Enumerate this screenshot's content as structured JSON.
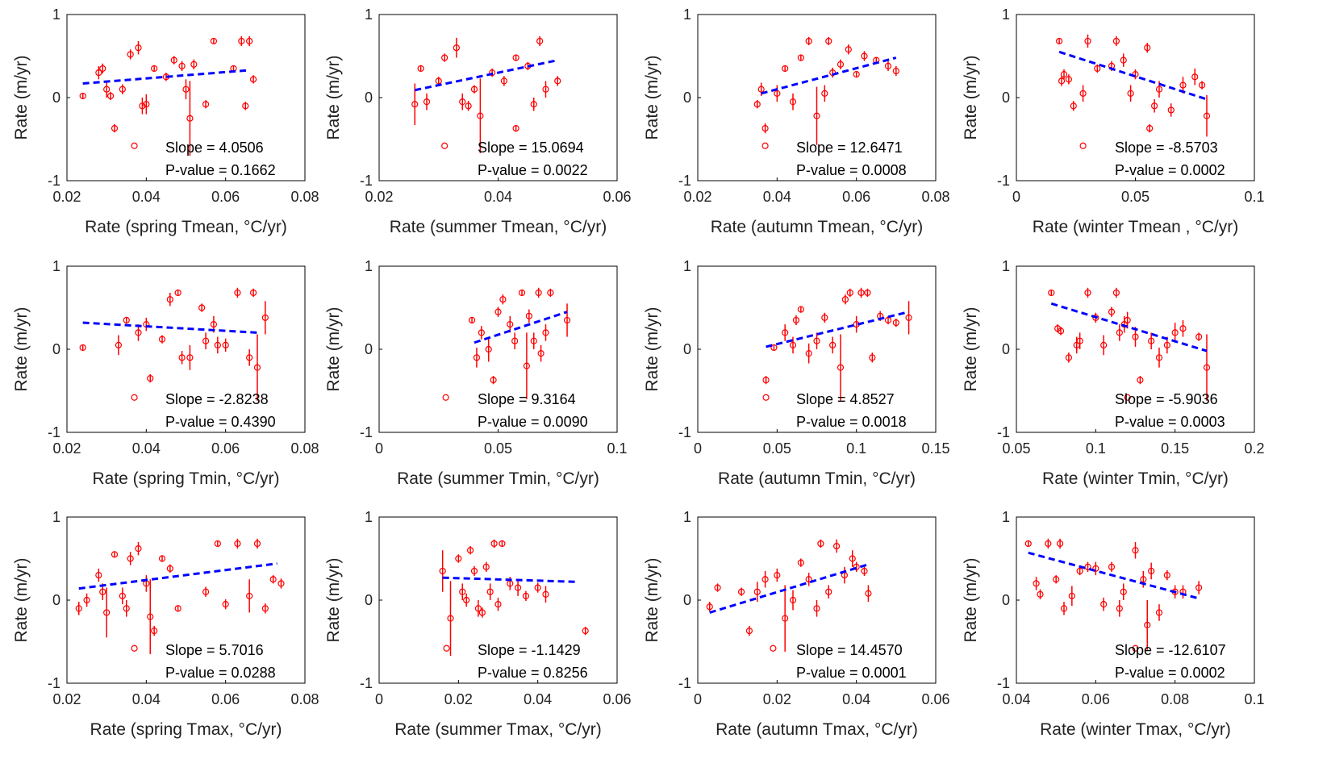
{
  "chart_data": [
    {
      "type": "scatter",
      "xlabel": "Rate (spring  Tmean, °C/yr)",
      "ylabel": "Rate (m/yr)",
      "xlim": [
        0.02,
        0.08
      ],
      "xticks": [
        0.02,
        0.04,
        0.06,
        0.08
      ],
      "ylim": [
        -1,
        1
      ],
      "yticks": [
        -1,
        0,
        1
      ],
      "color": "#ff0000",
      "x": [
        0.024,
        0.028,
        0.029,
        0.03,
        0.031,
        0.032,
        0.034,
        0.036,
        0.037,
        0.038,
        0.039,
        0.04,
        0.042,
        0.045,
        0.047,
        0.049,
        0.05,
        0.051,
        0.052,
        0.055,
        0.057,
        0.062,
        0.064,
        0.065,
        0.066,
        0.067
      ],
      "values": [
        0.02,
        0.3,
        0.35,
        0.1,
        0.02,
        -0.37,
        0.1,
        0.52,
        -0.58,
        0.6,
        -0.1,
        -0.08,
        0.35,
        0.25,
        0.45,
        0.38,
        0.1,
        -0.25,
        0.4,
        -0.08,
        0.68,
        0.35,
        0.68,
        -0.1,
        0.68,
        0.22
      ],
      "errors": [
        0.03,
        0.08,
        0.06,
        0.1,
        0.05,
        0.05,
        0.06,
        0.06,
        0,
        0.08,
        0.1,
        0.12,
        0.04,
        0.05,
        0.05,
        0.06,
        0.12,
        0.45,
        0.06,
        0.05,
        0.03,
        0.04,
        0.06,
        0.05,
        0.06,
        0.05
      ],
      "fit": {
        "x": [
          0.024,
          0.066
        ],
        "values": [
          0.17,
          0.33
        ],
        "color": "#0000ff"
      },
      "slope_text": "Slope = 4.0506",
      "p_text": "P-value = 0.1662"
    },
    {
      "type": "scatter",
      "xlabel": "Rate (summer Tmean, °C/yr)",
      "ylabel": "Rate (m/yr)",
      "xlim": [
        0.02,
        0.06
      ],
      "xticks": [
        0.02,
        0.04,
        0.06
      ],
      "ylim": [
        -1,
        1
      ],
      "yticks": [
        -1,
        0,
        1
      ],
      "color": "#ff0000",
      "x": [
        0.026,
        0.027,
        0.028,
        0.03,
        0.031,
        0.031,
        0.033,
        0.034,
        0.035,
        0.036,
        0.037,
        0.039,
        0.041,
        0.043,
        0.043,
        0.045,
        0.046,
        0.047,
        0.048,
        0.05
      ],
      "values": [
        -0.08,
        0.35,
        -0.05,
        0.2,
        0.48,
        -0.58,
        0.6,
        -0.05,
        -0.1,
        0.1,
        -0.22,
        0.3,
        0.2,
        0.48,
        -0.37,
        0.38,
        -0.08,
        0.68,
        0.1,
        0.2
      ],
      "errors": [
        0.25,
        0.04,
        0.1,
        0.05,
        0.05,
        0,
        0.12,
        0.1,
        0.06,
        0.05,
        0.45,
        0.05,
        0.06,
        0.04,
        0.04,
        0.05,
        0.08,
        0.06,
        0.1,
        0.06
      ],
      "fit": {
        "x": [
          0.026,
          0.05
        ],
        "values": [
          0.09,
          0.45
        ],
        "color": "#0000ff"
      },
      "slope_text": "Slope = 15.0694",
      "p_text": "P-value = 0.0022"
    },
    {
      "type": "scatter",
      "xlabel": "Rate (autumn Tmean, °C/yr)",
      "ylabel": "Rate (m/yr)",
      "xlim": [
        0.02,
        0.08
      ],
      "xticks": [
        0.02,
        0.04,
        0.06,
        0.08
      ],
      "ylim": [
        -1,
        1
      ],
      "yticks": [
        -1,
        0,
        1
      ],
      "color": "#ff0000",
      "x": [
        0.035,
        0.036,
        0.037,
        0.037,
        0.04,
        0.042,
        0.044,
        0.046,
        0.048,
        0.05,
        0.052,
        0.053,
        0.054,
        0.056,
        0.058,
        0.06,
        0.062,
        0.065,
        0.068,
        0.07
      ],
      "values": [
        -0.08,
        0.1,
        -0.37,
        -0.58,
        0.05,
        0.35,
        -0.05,
        0.48,
        0.68,
        -0.22,
        0.05,
        0.68,
        0.3,
        0.4,
        0.58,
        0.28,
        0.5,
        0.45,
        0.38,
        0.32
      ],
      "errors": [
        0.05,
        0.08,
        0.06,
        0,
        0.1,
        0.04,
        0.1,
        0.04,
        0.05,
        0.35,
        0.1,
        0.05,
        0.06,
        0.06,
        0.06,
        0.04,
        0.06,
        0.04,
        0.06,
        0.06
      ],
      "fit": {
        "x": [
          0.036,
          0.07
        ],
        "values": [
          0.05,
          0.48
        ],
        "color": "#0000ff"
      },
      "slope_text": "Slope = 12.6471",
      "p_text": "P-value = 0.0008"
    },
    {
      "type": "scatter",
      "xlabel": "Rate (winter Tmean , °C/yr)",
      "ylabel": "Rate (m/yr)",
      "xlim": [
        0,
        0.1
      ],
      "xticks": [
        0,
        0.05,
        0.1
      ],
      "ylim": [
        -1,
        1
      ],
      "yticks": [
        -1,
        0,
        1
      ],
      "color": "#ff0000",
      "x": [
        0.018,
        0.019,
        0.02,
        0.022,
        0.024,
        0.028,
        0.028,
        0.03,
        0.034,
        0.04,
        0.042,
        0.045,
        0.048,
        0.05,
        0.055,
        0.056,
        0.058,
        0.06,
        0.065,
        0.07,
        0.075,
        0.078,
        0.08
      ],
      "values": [
        0.68,
        0.2,
        0.28,
        0.22,
        -0.1,
        0.05,
        -0.58,
        0.68,
        0.35,
        0.38,
        0.68,
        0.45,
        0.05,
        0.28,
        0.6,
        -0.37,
        -0.1,
        0.1,
        -0.15,
        0.15,
        0.25,
        0.15,
        -0.22
      ],
      "errors": [
        0.03,
        0.06,
        0.06,
        0.06,
        0.06,
        0.1,
        0,
        0.08,
        0.05,
        0.06,
        0.06,
        0.08,
        0.1,
        0.06,
        0.06,
        0.05,
        0.08,
        0.1,
        0.08,
        0.1,
        0.1,
        0.05,
        0.25
      ],
      "fit": {
        "x": [
          0.018,
          0.08
        ],
        "values": [
          0.55,
          -0.02
        ],
        "color": "#0000ff"
      },
      "slope_text": "Slope = -8.5703",
      "p_text": "P-value = 0.0002"
    },
    {
      "type": "scatter",
      "xlabel": "Rate (spring Tmin, °C/yr)",
      "ylabel": "Rate (m/yr)",
      "xlim": [
        0.02,
        0.08
      ],
      "xticks": [
        0.02,
        0.04,
        0.06,
        0.08
      ],
      "ylim": [
        -1,
        1
      ],
      "yticks": [
        -1,
        0,
        1
      ],
      "color": "#ff0000",
      "x": [
        0.024,
        0.033,
        0.035,
        0.037,
        0.038,
        0.04,
        0.041,
        0.044,
        0.046,
        0.048,
        0.049,
        0.051,
        0.054,
        0.055,
        0.057,
        0.058,
        0.06,
        0.063,
        0.066,
        0.067,
        0.068,
        0.07
      ],
      "values": [
        0.02,
        0.05,
        0.35,
        -0.58,
        0.2,
        0.3,
        -0.35,
        0.12,
        0.6,
        0.68,
        -0.1,
        -0.1,
        0.5,
        0.1,
        0.3,
        0.05,
        0.05,
        0.68,
        -0.1,
        0.68,
        -0.22,
        0.38
      ],
      "errors": [
        0.03,
        0.12,
        0.04,
        0,
        0.1,
        0.08,
        0.05,
        0.05,
        0.08,
        0.04,
        0.08,
        0.15,
        0.05,
        0.1,
        0.1,
        0.1,
        0.08,
        0.06,
        0.1,
        0.05,
        0.4,
        0.2
      ],
      "fit": {
        "x": [
          0.024,
          0.068
        ],
        "values": [
          0.32,
          0.2
        ],
        "color": "#0000ff"
      },
      "slope_text": "Slope = -2.8238",
      "p_text": "P-value = 0.4390"
    },
    {
      "type": "scatter",
      "xlabel": "Rate (summer Tmin, °C/yr)",
      "ylabel": "Rate (m/yr)",
      "xlim": [
        0,
        0.1
      ],
      "xticks": [
        0,
        0.05,
        0.1
      ],
      "ylim": [
        -1,
        1
      ],
      "yticks": [
        -1,
        0,
        1
      ],
      "color": "#ff0000",
      "x": [
        0.028,
        0.039,
        0.041,
        0.043,
        0.046,
        0.048,
        0.05,
        0.052,
        0.055,
        0.057,
        0.06,
        0.062,
        0.063,
        0.065,
        0.067,
        0.068,
        0.07,
        0.072,
        0.079
      ],
      "values": [
        -0.58,
        0.35,
        -0.1,
        0.2,
        0.0,
        -0.37,
        0.45,
        0.6,
        0.3,
        0.1,
        0.68,
        -0.2,
        0.4,
        0.1,
        0.68,
        -0.05,
        0.2,
        0.68,
        0.35
      ],
      "errors": [
        0,
        0.04,
        0.12,
        0.08,
        0.15,
        0.05,
        0.06,
        0.06,
        0.1,
        0.1,
        0.04,
        0.4,
        0.08,
        0.1,
        0.06,
        0.1,
        0.1,
        0.05,
        0.2
      ],
      "fit": {
        "x": [
          0.04,
          0.079
        ],
        "values": [
          0.08,
          0.45
        ],
        "color": "#0000ff"
      },
      "slope_text": "Slope = 9.3164",
      "p_text": "P-value = 0.0090"
    },
    {
      "type": "scatter",
      "xlabel": "Rate (autumn Tmin, °C/yr)",
      "ylabel": "Rate (m/yr)",
      "xlim": [
        0,
        0.15
      ],
      "xticks": [
        0,
        0.05,
        0.1,
        0.15
      ],
      "ylim": [
        -1,
        1
      ],
      "yticks": [
        -1,
        0,
        1
      ],
      "color": "#ff0000",
      "x": [
        0.043,
        0.043,
        0.048,
        0.055,
        0.06,
        0.062,
        0.065,
        0.07,
        0.075,
        0.08,
        0.085,
        0.09,
        0.093,
        0.096,
        0.1,
        0.103,
        0.107,
        0.11,
        0.115,
        0.12,
        0.125,
        0.133
      ],
      "values": [
        -0.37,
        -0.58,
        0.02,
        0.2,
        0.05,
        0.35,
        0.48,
        -0.05,
        0.1,
        0.38,
        0.05,
        -0.22,
        0.6,
        0.68,
        0.3,
        0.68,
        0.68,
        -0.1,
        0.4,
        0.35,
        0.32,
        0.38
      ],
      "errors": [
        0.05,
        0,
        0.03,
        0.1,
        0.1,
        0.06,
        0.04,
        0.12,
        0.1,
        0.06,
        0.1,
        0.4,
        0.06,
        0.05,
        0.1,
        0.06,
        0.05,
        0.06,
        0.06,
        0.05,
        0.05,
        0.2
      ],
      "fit": {
        "x": [
          0.043,
          0.133
        ],
        "values": [
          0.03,
          0.45
        ],
        "color": "#0000ff"
      },
      "slope_text": "Slope = 4.8527",
      "p_text": "P-value = 0.0018"
    },
    {
      "type": "scatter",
      "xlabel": "Rate (winter Tmin, °C/yr)",
      "ylabel": "Rate (m/yr)",
      "xlim": [
        0.05,
        0.2
      ],
      "xticks": [
        0.05,
        0.1,
        0.15,
        0.2
      ],
      "ylim": [
        -1,
        1
      ],
      "yticks": [
        -1,
        0,
        1
      ],
      "color": "#ff0000",
      "x": [
        0.072,
        0.076,
        0.078,
        0.083,
        0.088,
        0.09,
        0.095,
        0.1,
        0.105,
        0.11,
        0.113,
        0.115,
        0.118,
        0.12,
        0.12,
        0.125,
        0.128,
        0.135,
        0.14,
        0.145,
        0.15,
        0.155,
        0.165,
        0.17
      ],
      "values": [
        0.68,
        0.25,
        0.22,
        -0.1,
        0.05,
        0.1,
        0.68,
        0.38,
        0.05,
        0.45,
        0.68,
        0.2,
        0.3,
        0.35,
        -0.58,
        0.15,
        -0.37,
        0.1,
        -0.1,
        0.05,
        0.2,
        0.25,
        0.15,
        -0.22
      ],
      "errors": [
        0.03,
        0.05,
        0.05,
        0.06,
        0.1,
        0.1,
        0.06,
        0.06,
        0.12,
        0.06,
        0.06,
        0.1,
        0.1,
        0.1,
        0,
        0.12,
        0.05,
        0.1,
        0.12,
        0.1,
        0.12,
        0.1,
        0.05,
        0.4
      ],
      "fit": {
        "x": [
          0.072,
          0.17
        ],
        "values": [
          0.55,
          -0.02
        ],
        "color": "#0000ff"
      },
      "slope_text": "Slope = -5.9036",
      "p_text": "P-value = 0.0003"
    },
    {
      "type": "scatter",
      "xlabel": "Rate (spring Tmax, °C/yr)",
      "ylabel": "Rate (m/yr)",
      "xlim": [
        0.02,
        0.08
      ],
      "xticks": [
        0.02,
        0.04,
        0.06,
        0.08
      ],
      "ylim": [
        -1,
        1
      ],
      "yticks": [
        -1,
        0,
        1
      ],
      "color": "#ff0000",
      "x": [
        0.023,
        0.025,
        0.028,
        0.029,
        0.03,
        0.032,
        0.034,
        0.035,
        0.036,
        0.037,
        0.038,
        0.04,
        0.041,
        0.042,
        0.044,
        0.046,
        0.048,
        0.055,
        0.058,
        0.06,
        0.063,
        0.066,
        0.068,
        0.07,
        0.072,
        0.074
      ],
      "values": [
        -0.1,
        0.0,
        0.3,
        0.1,
        -0.15,
        0.55,
        0.05,
        -0.1,
        0.5,
        -0.58,
        0.62,
        0.2,
        -0.2,
        -0.37,
        0.5,
        0.38,
        -0.1,
        0.1,
        0.68,
        -0.05,
        0.68,
        0.05,
        0.68,
        -0.1,
        0.25,
        0.2
      ],
      "errors": [
        0.08,
        0.08,
        0.08,
        0.1,
        0.3,
        0.03,
        0.1,
        0.1,
        0.08,
        0,
        0.08,
        0.1,
        0.45,
        0.06,
        0.04,
        0.05,
        0.04,
        0.06,
        0.03,
        0.06,
        0.06,
        0.2,
        0.06,
        0.06,
        0.05,
        0.06
      ],
      "fit": {
        "x": [
          0.023,
          0.073
        ],
        "values": [
          0.14,
          0.44
        ],
        "color": "#0000ff"
      },
      "slope_text": "Slope = 5.7016",
      "p_text": "P-value = 0.0288"
    },
    {
      "type": "scatter",
      "xlabel": "Rate (summer Tmax, °C/yr)",
      "ylabel": "Rate (m/yr)",
      "xlim": [
        0,
        0.06
      ],
      "xticks": [
        0,
        0.02,
        0.04,
        0.06
      ],
      "ylim": [
        -1,
        1
      ],
      "yticks": [
        -1,
        0,
        1
      ],
      "color": "#ff0000",
      "x": [
        0.016,
        0.017,
        0.018,
        0.02,
        0.021,
        0.022,
        0.023,
        0.024,
        0.025,
        0.026,
        0.027,
        0.028,
        0.029,
        0.03,
        0.031,
        0.033,
        0.035,
        0.037,
        0.04,
        0.042,
        0.052
      ],
      "values": [
        0.35,
        -0.58,
        -0.22,
        0.5,
        0.1,
        0.0,
        0.6,
        0.35,
        -0.1,
        -0.15,
        0.4,
        0.1,
        0.68,
        -0.05,
        0.68,
        0.2,
        0.15,
        0.05,
        0.15,
        0.07,
        -0.37
      ],
      "errors": [
        0.25,
        0,
        0.45,
        0.05,
        0.1,
        0.08,
        0.05,
        0.06,
        0.1,
        0.06,
        0.06,
        0.1,
        0.05,
        0.08,
        0.04,
        0.08,
        0.1,
        0.06,
        0.06,
        0.1,
        0.05
      ],
      "fit": {
        "x": [
          0.016,
          0.05
        ],
        "values": [
          0.27,
          0.22
        ],
        "color": "#0000ff"
      },
      "slope_text": "Slope = -1.1429",
      "p_text": "P-value = 0.8256"
    },
    {
      "type": "scatter",
      "xlabel": "Rate (autumn Tmax, °C/yr)",
      "ylabel": "Rate (m/yr)",
      "xlim": [
        0,
        0.06
      ],
      "xticks": [
        0,
        0.02,
        0.04,
        0.06
      ],
      "ylim": [
        -1,
        1
      ],
      "yticks": [
        -1,
        0,
        1
      ],
      "color": "#ff0000",
      "x": [
        0.003,
        0.005,
        0.011,
        0.013,
        0.015,
        0.017,
        0.019,
        0.02,
        0.022,
        0.024,
        0.026,
        0.028,
        0.03,
        0.031,
        0.033,
        0.035,
        0.037,
        0.039,
        0.04,
        0.042,
        0.043
      ],
      "values": [
        -0.08,
        0.15,
        0.1,
        -0.37,
        0.1,
        0.25,
        -0.58,
        0.3,
        -0.22,
        0.0,
        0.45,
        0.25,
        -0.1,
        0.68,
        0.1,
        0.65,
        0.3,
        0.5,
        0.4,
        0.35,
        0.08
      ],
      "errors": [
        0.06,
        0.05,
        0.05,
        0.06,
        0.12,
        0.1,
        0,
        0.08,
        0.4,
        0.12,
        0.05,
        0.08,
        0.1,
        0.05,
        0.08,
        0.08,
        0.1,
        0.1,
        0.06,
        0.06,
        0.1
      ],
      "fit": {
        "x": [
          0.003,
          0.043
        ],
        "values": [
          -0.15,
          0.43
        ],
        "color": "#0000ff"
      },
      "slope_text": "Slope = 14.4570",
      "p_text": "P-value = 0.0001"
    },
    {
      "type": "scatter",
      "xlabel": "Rate (winter Tmax, °C/yr)",
      "ylabel": "Rate (m/yr)",
      "xlim": [
        0.04,
        0.1
      ],
      "xticks": [
        0.04,
        0.06,
        0.08,
        0.1
      ],
      "ylim": [
        -1,
        1
      ],
      "yticks": [
        -1,
        0,
        1
      ],
      "color": "#ff0000",
      "x": [
        0.043,
        0.045,
        0.046,
        0.048,
        0.05,
        0.051,
        0.052,
        0.054,
        0.056,
        0.058,
        0.06,
        0.062,
        0.064,
        0.066,
        0.067,
        0.07,
        0.07,
        0.072,
        0.073,
        0.074,
        0.076,
        0.078,
        0.08,
        0.082,
        0.086
      ],
      "values": [
        0.68,
        0.2,
        0.07,
        0.68,
        0.25,
        0.68,
        -0.1,
        0.05,
        0.35,
        0.4,
        0.38,
        -0.05,
        0.4,
        -0.1,
        0.1,
        0.6,
        -0.58,
        0.25,
        -0.3,
        0.35,
        -0.15,
        0.3,
        0.1,
        0.1,
        0.15
      ],
      "errors": [
        0.03,
        0.08,
        0.06,
        0.06,
        0.05,
        0.06,
        0.08,
        0.12,
        0.05,
        0.06,
        0.08,
        0.08,
        0.06,
        0.1,
        0.1,
        0.1,
        0,
        0.1,
        0.3,
        0.1,
        0.1,
        0.06,
        0.08,
        0.08,
        0.08
      ],
      "fit": {
        "x": [
          0.043,
          0.086
        ],
        "values": [
          0.57,
          0.02
        ],
        "color": "#0000ff"
      },
      "slope_text": "Slope = -12.6107",
      "p_text": "P-value = 0.0002"
    }
  ]
}
